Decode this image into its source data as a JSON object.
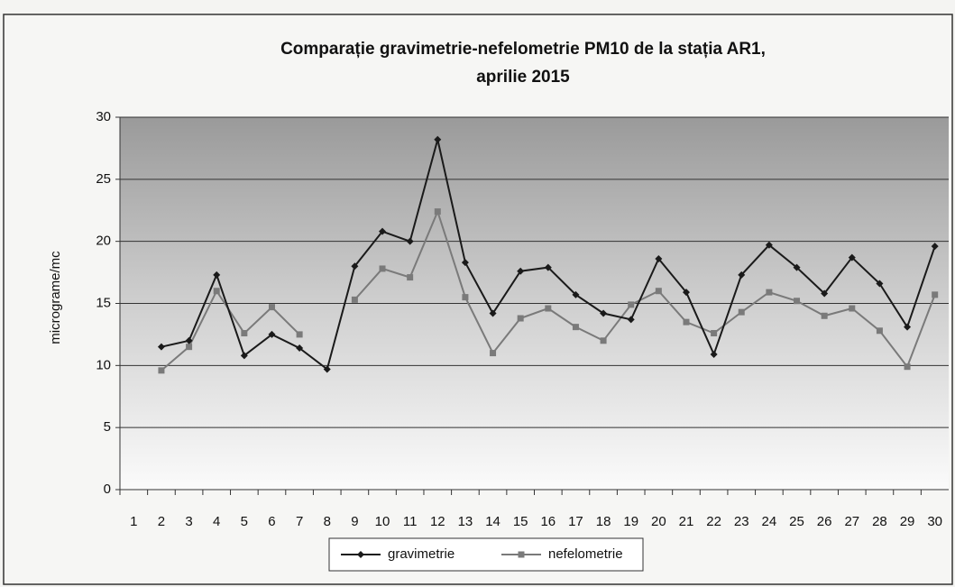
{
  "chart_data": {
    "type": "line",
    "title": [
      "Comparație gravimetrie-nefelometrie PM10 de la stația AR1,",
      "aprilie 2015"
    ],
    "y_label": "micrograme/mc",
    "categories": [
      1,
      2,
      3,
      4,
      5,
      6,
      7,
      8,
      9,
      10,
      11,
      12,
      13,
      14,
      15,
      16,
      17,
      18,
      19,
      20,
      21,
      22,
      23,
      24,
      25,
      26,
      27,
      28,
      29,
      30
    ],
    "series": [
      {
        "name": "gravimetrie",
        "color": "#1a1a1a",
        "marker": "diamond",
        "values": [
          null,
          11.5,
          12,
          17.3,
          10.8,
          12.5,
          11.4,
          9.7,
          18,
          20.8,
          20,
          28.2,
          18.3,
          14.2,
          17.6,
          17.9,
          15.7,
          14.2,
          13.7,
          18.6,
          15.9,
          10.9,
          17.3,
          19.7,
          17.9,
          15.8,
          18.7,
          16.6,
          13.1,
          19.6
        ]
      },
      {
        "name": "nefelometrie",
        "color": "#7a7a7a",
        "marker": "square",
        "values": [
          null,
          9.6,
          11.5,
          16,
          12.6,
          14.7,
          12.5,
          null,
          15.3,
          17.8,
          17.1,
          22.4,
          15.5,
          11,
          13.8,
          14.6,
          13.1,
          12,
          14.9,
          16,
          13.5,
          12.6,
          14.3,
          15.9,
          15.2,
          14,
          14.6,
          12.8,
          9.9,
          15.7
        ]
      }
    ],
    "ylim": [
      0,
      30
    ],
    "yticks": [
      0,
      5,
      10,
      15,
      20,
      25,
      30
    ],
    "grid": true,
    "legend": "bottom"
  }
}
